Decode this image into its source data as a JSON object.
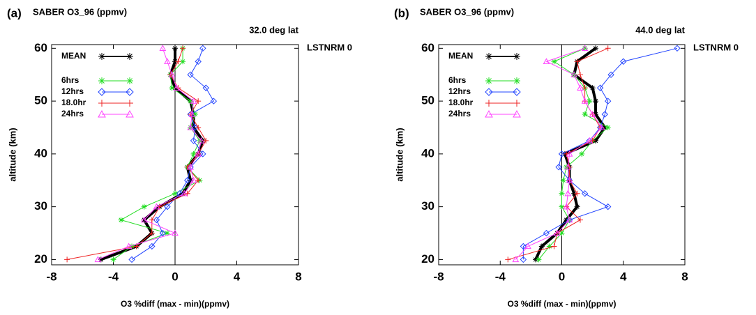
{
  "chart_data": [
    {
      "type": "line",
      "label": "(a)",
      "title": "SABER O3_96 (ppmv)",
      "subtitle": "32.0 deg lat",
      "annotation": "LSTNRM 0",
      "xlabel": "O3 %diff (max - min)(ppmv)",
      "ylabel": "altitude (km)",
      "xlim": [
        -8,
        8
      ],
      "xticks": [
        -8,
        -4,
        0,
        4,
        8
      ],
      "ylim": [
        19,
        60.7
      ],
      "yticks": [
        20,
        30,
        40,
        50,
        60
      ],
      "legend": "upper left",
      "y": [
        20,
        22.5,
        25,
        27.5,
        30,
        32.5,
        35,
        37.5,
        40,
        42.5,
        45,
        47.5,
        50,
        52.5,
        55,
        57.5,
        60
      ],
      "series": [
        {
          "name": "MEAN",
          "color": "#000000",
          "marker": "star",
          "values": [
            -4.8,
            -2.5,
            -1.5,
            -2.0,
            -1.0,
            0.5,
            1.0,
            0.8,
            1.5,
            1.8,
            1.2,
            1.2,
            1.0,
            0.0,
            -0.3,
            0.0,
            0.0
          ]
        },
        {
          "name": "6hrs",
          "color": "#22dd22",
          "marker": "star",
          "values": [
            -4.0,
            -2.8,
            -0.5,
            -3.5,
            -2.0,
            0.0,
            1.6,
            0.8,
            1.2,
            1.6,
            1.0,
            1.3,
            1.0,
            -0.2,
            -0.3,
            0.5,
            0.5
          ]
        },
        {
          "name": "12hrs",
          "color": "#2244ff",
          "marker": "diamond",
          "values": [
            -2.8,
            -1.5,
            -0.8,
            -1.2,
            -0.5,
            0.3,
            0.8,
            1.0,
            1.8,
            1.2,
            1.3,
            1.0,
            2.5,
            2.0,
            1.0,
            1.5,
            1.8
          ]
        },
        {
          "name": "18.0hr",
          "color": "#ee2222",
          "marker": "plus",
          "values": [
            -7.0,
            -2.5,
            -1.5,
            -1.5,
            -1.0,
            0.8,
            1.5,
            0.8,
            1.5,
            2.0,
            1.5,
            1.0,
            1.5,
            0.2,
            -0.3,
            0.2,
            0.5
          ]
        },
        {
          "name": "24hrs",
          "color": "#ff44ff",
          "marker": "triangle",
          "values": [
            -5.0,
            -3.0,
            0.0,
            -2.0,
            -1.2,
            0.6,
            1.2,
            1.0,
            1.5,
            1.7,
            1.0,
            1.1,
            1.2,
            0.1,
            -0.2,
            -0.5,
            -0.8
          ]
        }
      ]
    },
    {
      "type": "line",
      "label": "(b)",
      "title": "SABER O3_96 (ppmv)",
      "subtitle": "44.0 deg lat",
      "annotation": "LSTNRM 0",
      "xlabel": "O3 %diff (max - min)(ppmv)",
      "ylabel": "altitude (km)",
      "xlim": [
        -8,
        8
      ],
      "xticks": [
        -8,
        -4,
        0,
        4,
        8
      ],
      "ylim": [
        19,
        60.7
      ],
      "yticks": [
        20,
        30,
        40,
        50,
        60
      ],
      "legend": "upper left",
      "y": [
        20,
        22.5,
        25,
        27.5,
        30,
        32.5,
        35,
        37.5,
        40,
        42.5,
        45,
        47.5,
        50,
        52.5,
        55,
        57.5,
        60
      ],
      "series": [
        {
          "name": "MEAN",
          "color": "#000000",
          "marker": "star",
          "values": [
            -1.7,
            -1.3,
            -0.3,
            0.3,
            1.0,
            0.8,
            0.5,
            0.5,
            0.2,
            2.2,
            2.8,
            2.2,
            2.2,
            2.0,
            0.8,
            1.0,
            2.2
          ]
        },
        {
          "name": "6hrs",
          "color": "#22dd22",
          "marker": "star",
          "values": [
            -1.5,
            -0.8,
            0.0,
            0.5,
            0.0,
            0.0,
            0.1,
            0.3,
            1.3,
            2.0,
            3.0,
            1.5,
            1.8,
            1.5,
            0.8,
            -0.5,
            1.5
          ]
        },
        {
          "name": "12hrs",
          "color": "#2244ff",
          "marker": "diamond",
          "values": [
            -2.5,
            -2.5,
            -1.0,
            0.5,
            3.0,
            1.5,
            0.5,
            -0.2,
            0.0,
            1.8,
            2.5,
            2.8,
            3.0,
            2.5,
            3.2,
            4.0,
            7.5
          ]
        },
        {
          "name": "18.0hr",
          "color": "#ee2222",
          "marker": "plus",
          "values": [
            -3.5,
            -0.5,
            -0.3,
            1.2,
            0.3,
            1.0,
            0.5,
            0.5,
            0.3,
            2.0,
            2.5,
            2.0,
            1.5,
            1.5,
            1.2,
            1.0,
            3.0
          ]
        },
        {
          "name": "24hrs",
          "color": "#ff44ff",
          "marker": "triangle",
          "values": [
            -3.0,
            -2.2,
            -0.3,
            0.5,
            0.3,
            0.4,
            0.5,
            0.4,
            0.5,
            1.8,
            2.6,
            2.0,
            1.5,
            1.2,
            0.8,
            -1.0,
            1.5
          ]
        }
      ]
    }
  ]
}
